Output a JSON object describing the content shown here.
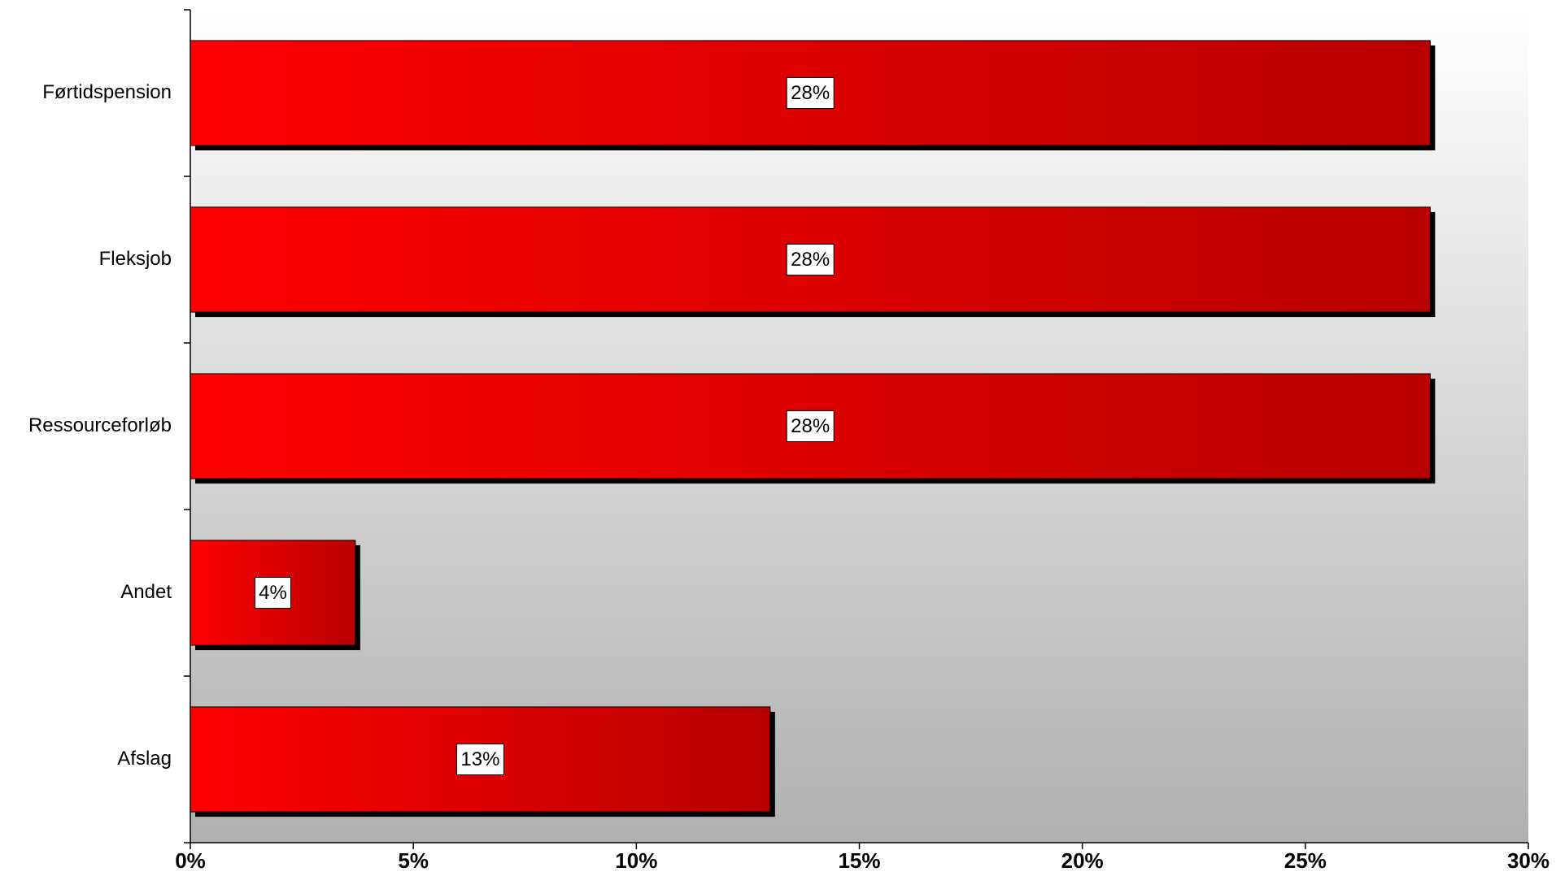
{
  "chart_data": {
    "type": "bar",
    "orientation": "horizontal",
    "categories": [
      "Førtidspension",
      "Fleksjob",
      "Ressourceforløb",
      "Andet",
      "Afslag"
    ],
    "values": [
      27.8,
      27.8,
      27.8,
      3.7,
      13.0
    ],
    "data_labels": [
      "28%",
      "28%",
      "28%",
      "4%",
      "13%"
    ],
    "xlim": [
      0,
      30
    ],
    "x_ticks": [
      0,
      5,
      10,
      15,
      20,
      25,
      30
    ],
    "x_tick_labels": [
      "0%",
      "5%",
      "10%",
      "15%",
      "20%",
      "25%",
      "30%"
    ],
    "title": "",
    "xlabel": "",
    "ylabel": "",
    "grid": false,
    "legend": "none",
    "colors": {
      "bar_start": "#ff0000",
      "bar_end": "#b80000",
      "shadow": "#000000",
      "plot_bg_top": "#ffffff",
      "plot_bg_bottom": "#b0b0b0"
    }
  }
}
